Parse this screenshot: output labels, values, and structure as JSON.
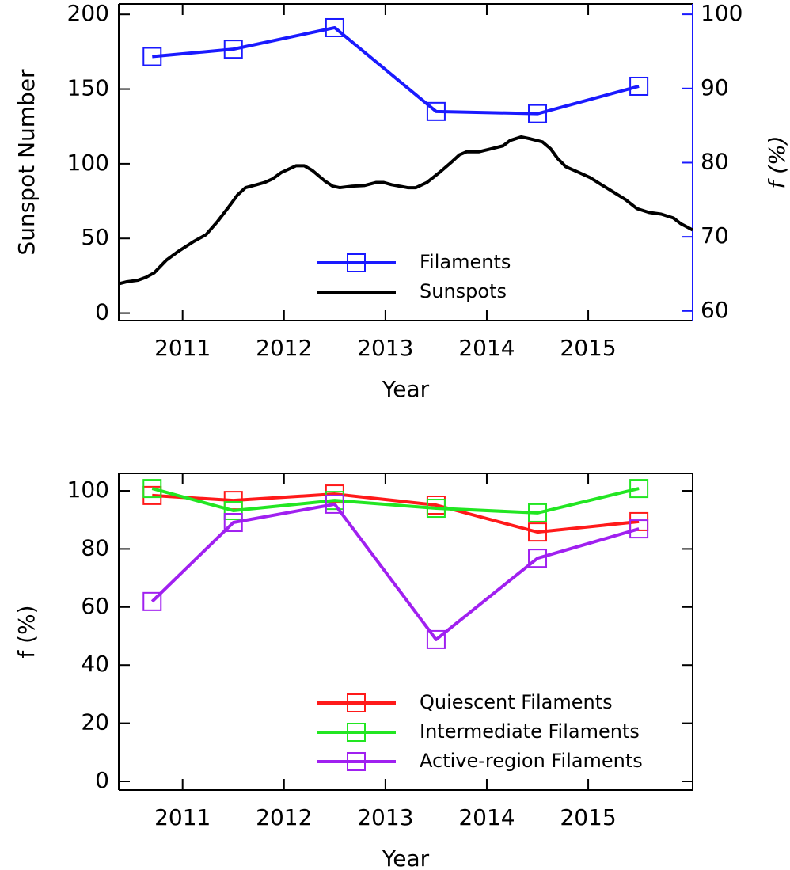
{
  "chart_data": [
    {
      "type": "line",
      "xlabel": "Year",
      "ylabel": "Sunspot Number",
      "y2label": "f (%)",
      "xlim": [
        2010.37,
        2016.03
      ],
      "xticks": [
        2011,
        2012,
        2013,
        2014,
        2015
      ],
      "ylim": [
        -5,
        207
      ],
      "yticks": [
        0,
        50,
        100,
        150,
        200
      ],
      "y2lim": [
        58.7,
        101.4
      ],
      "y2ticks": [
        60,
        70,
        80,
        90,
        100
      ],
      "y2color": "#1a1aff",
      "legend": "lower center",
      "series": [
        {
          "name": "Filaments",
          "color": "#1a1aff",
          "axis": "y2",
          "marker": "square",
          "x": [
            2010.7,
            2011.5,
            2012.5,
            2013.5,
            2014.5,
            2015.5
          ],
          "values": [
            94.3,
            95.3,
            98.2,
            86.9,
            86.6,
            90.3
          ]
        },
        {
          "name": "Sunspots",
          "color": "#000000",
          "x": [
            2010.37,
            2010.45,
            2010.56,
            2010.64,
            2010.72,
            2010.84,
            2010.95,
            2011.11,
            2011.23,
            2011.34,
            2011.46,
            2011.54,
            2011.62,
            2011.73,
            2011.81,
            2011.89,
            2011.97,
            2012.05,
            2012.12,
            2012.2,
            2012.28,
            2012.4,
            2012.48,
            2012.55,
            2012.67,
            2012.79,
            2012.91,
            2012.98,
            2013.06,
            2013.14,
            2013.22,
            2013.3,
            2013.41,
            2013.53,
            2013.65,
            2013.73,
            2013.8,
            2013.92,
            2014.04,
            2014.16,
            2014.23,
            2014.34,
            2014.43,
            2014.55,
            2014.63,
            2014.7,
            2014.78,
            2014.9,
            2015.02,
            2015.13,
            2015.25,
            2015.37,
            2015.48,
            2015.6,
            2015.72,
            2015.84,
            2015.91,
            2016.03
          ],
          "values": [
            19.6,
            21,
            22,
            24,
            27,
            35.5,
            41,
            48,
            52.5,
            61,
            71.6,
            79,
            84,
            86,
            87.5,
            90,
            94,
            96.5,
            98.7,
            98.7,
            95.5,
            88.6,
            85,
            84,
            85,
            85.4,
            87.5,
            87.5,
            86,
            85,
            84,
            84,
            87.5,
            94,
            101,
            106,
            108,
            108,
            110,
            112,
            115.6,
            118,
            116.7,
            114.6,
            110,
            103.4,
            98,
            94.4,
            90.7,
            86,
            81,
            75.9,
            70,
            67.4,
            66.3,
            63.7,
            60,
            55.7
          ]
        }
      ]
    },
    {
      "type": "line",
      "xlabel": "Year",
      "ylabel": "f (%)",
      "xlim": [
        2010.37,
        2016.03
      ],
      "xticks": [
        2011,
        2012,
        2013,
        2014,
        2015
      ],
      "ylim": [
        -3,
        106
      ],
      "yticks": [
        0,
        20,
        40,
        60,
        80,
        100
      ],
      "legend": "lower right",
      "series": [
        {
          "name": "Quiescent Filaments",
          "color": "#ff1a1a",
          "marker": "square",
          "x": [
            2010.7,
            2011.5,
            2012.5,
            2013.5,
            2014.5,
            2015.5
          ],
          "values": [
            98.4,
            96.7,
            98.9,
            95.1,
            85.8,
            89.4
          ]
        },
        {
          "name": "Intermediate Filaments",
          "color": "#22e622",
          "marker": "square",
          "x": [
            2010.7,
            2011.5,
            2012.5,
            2013.5,
            2014.5,
            2015.5
          ],
          "values": [
            100.8,
            93.2,
            96.7,
            94,
            92.4,
            100.8
          ]
        },
        {
          "name": "Active-region Filaments",
          "color": "#a020f0",
          "marker": "square",
          "x": [
            2010.7,
            2011.5,
            2012.5,
            2013.5,
            2014.5,
            2015.5
          ],
          "values": [
            61.9,
            89.1,
            95.4,
            48.8,
            76.8,
            86.9
          ]
        }
      ]
    }
  ]
}
